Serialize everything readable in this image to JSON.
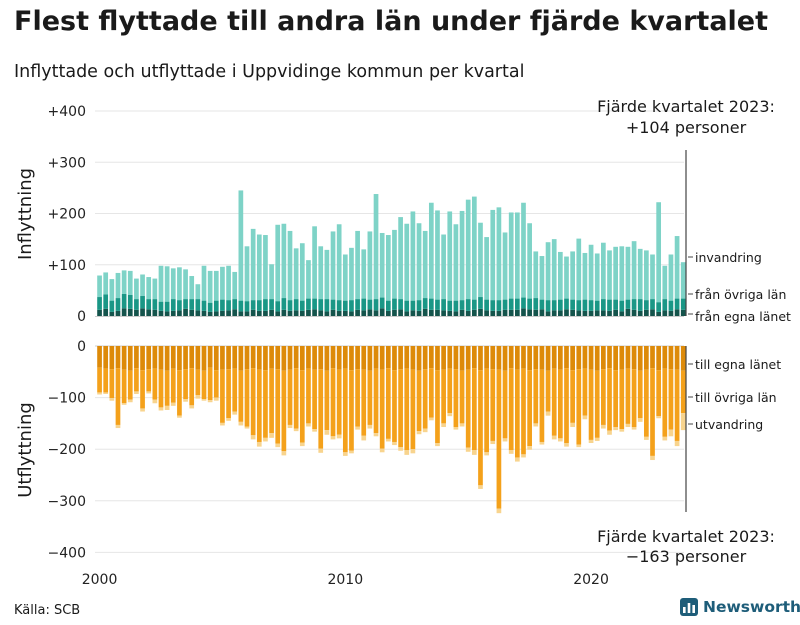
{
  "title": "Flest flyttade till andra län under fjärde kvartalet",
  "subtitle": "Inflyttade och utflyttade i Uppvidinge kommun per kvartal",
  "source": "Källa: SCB",
  "brand": "Newsworthy",
  "colors": {
    "in_own": "#14544c",
    "in_other": "#1a9786",
    "in_immigration": "#7ed3c7",
    "out_own": "#dd8a09",
    "out_other": "#f4a11b",
    "out_emigration": "#f8d48e",
    "grid": "#e6e6e6",
    "brand": "#1e5d79"
  },
  "chart_data": {
    "type": "bar",
    "stacked": true,
    "diverging": true,
    "x_unit": "quarter",
    "first_period": "2000-Q1",
    "xticks": [
      "2000",
      "2010",
      "2020"
    ],
    "top_panel": {
      "ylabel": "Inflyttning",
      "yticks": [
        "+400",
        "+300",
        "+200",
        "+100",
        "0"
      ],
      "ylim": [
        0,
        400
      ],
      "annotation": [
        "Fjärde kvartalet 2023:",
        "+104 personer"
      ],
      "series": [
        {
          "name": "från egna länet",
          "values": [
            12,
            14,
            8,
            10,
            15,
            14,
            12,
            15,
            13,
            12,
            10,
            9,
            10,
            11,
            14,
            12,
            11,
            10,
            8,
            9,
            10,
            11,
            13,
            9,
            9,
            12,
            10,
            10,
            12,
            9,
            12,
            10,
            11,
            10,
            12,
            13,
            11,
            9,
            12,
            10,
            10,
            9,
            12,
            11,
            13,
            11,
            15,
            10,
            12,
            13,
            9,
            11,
            10,
            14,
            12,
            12,
            11,
            10,
            9,
            12,
            10,
            12,
            14,
            11,
            10,
            10,
            12,
            12,
            12,
            15,
            13,
            12,
            13,
            9,
            11,
            11,
            13,
            12,
            11,
            10,
            10,
            11,
            11,
            10,
            12,
            9,
            14,
            12,
            10,
            12,
            13,
            8,
            11,
            10,
            13,
            12
          ]
        },
        {
          "name": "från övriga län",
          "values": [
            25,
            28,
            22,
            25,
            28,
            27,
            21,
            24,
            20,
            21,
            18,
            19,
            23,
            20,
            19,
            21,
            22,
            20,
            18,
            21,
            22,
            20,
            20,
            21,
            20,
            19,
            21,
            23,
            21,
            20,
            23,
            21,
            22,
            20,
            22,
            21,
            22,
            24,
            20,
            21,
            20,
            22,
            21,
            23,
            19,
            22,
            21,
            20,
            22,
            20,
            21,
            19,
            21,
            21,
            22,
            20,
            22,
            20,
            21,
            19,
            23,
            20,
            23,
            21,
            21,
            21,
            20,
            22,
            22,
            21,
            21,
            23,
            19,
            22,
            20,
            21,
            21,
            20,
            20,
            22,
            21,
            19,
            22,
            22,
            20,
            21,
            18,
            21,
            23,
            19,
            20,
            19,
            22,
            20,
            21,
            22
          ]
        },
        {
          "name": "invandring",
          "values": [
            42,
            43,
            42,
            49,
            46,
            47,
            40,
            42,
            43,
            40,
            70,
            69,
            60,
            64,
            58,
            45,
            29,
            68,
            62,
            58,
            64,
            67,
            53,
            215,
            107,
            139,
            128,
            125,
            68,
            149,
            145,
            135,
            99,
            112,
            75,
            141,
            103,
            96,
            133,
            148,
            90,
            102,
            133,
            96,
            133,
            205,
            126,
            128,
            134,
            160,
            150,
            174,
            150,
            131,
            187,
            174,
            126,
            174,
            149,
            174,
            194,
            201,
            145,
            122,
            176,
            181,
            131,
            168,
            168,
            185,
            147,
            91,
            85,
            113,
            119,
            93,
            82,
            94,
            120,
            91,
            108,
            92,
            110,
            96,
            103,
            106,
            103,
            113,
            98,
            97,
            87,
            195,
            65,
            90,
            122,
            71
          ]
        }
      ]
    },
    "bottom_panel": {
      "ylabel": "Utflyttning",
      "yticks": [
        "0",
        "−100",
        "−200",
        "−300",
        "−400"
      ],
      "ylim": [
        -400,
        0
      ],
      "annotation": [
        "Fjärde kvartalet 2023:",
        "−163 personer"
      ],
      "series": [
        {
          "name": "till egna länet",
          "values": [
            42,
            44,
            45,
            43,
            46,
            48,
            43,
            47,
            45,
            44,
            46,
            48,
            44,
            47,
            45,
            43,
            46,
            48,
            42,
            47,
            46,
            45,
            44,
            48,
            45,
            43,
            46,
            47,
            44,
            45,
            48,
            46,
            43,
            47,
            44,
            46,
            45,
            48,
            43,
            46,
            44,
            47,
            45,
            46,
            48,
            44,
            46,
            43,
            47,
            45,
            44,
            46,
            48,
            45,
            43,
            47,
            46,
            44,
            45,
            48,
            46,
            43,
            47,
            44,
            45,
            46,
            48,
            43,
            46,
            44,
            47,
            45,
            46,
            48,
            44,
            46,
            43,
            47,
            45,
            44,
            46,
            48,
            45,
            43,
            47,
            46,
            44,
            45,
            48,
            46,
            43,
            47,
            44,
            45,
            46,
            48
          ]
        },
        {
          "name": "till övriga län",
          "values": [
            48,
            46,
            56,
            110,
            65,
            56,
            45,
            74,
            43,
            60,
            73,
            68,
            66,
            88,
            58,
            72,
            49,
            55,
            63,
            53,
            103,
            95,
            83,
            99,
            111,
            130,
            140,
            131,
            125,
            144,
            156,
            107,
            117,
            140,
            106,
            115,
            154,
            115,
            132,
            126,
            162,
            156,
            111,
            128,
            105,
            125,
            153,
            137,
            139,
            151,
            158,
            154,
            117,
            115,
            96,
            141,
            104,
            86,
            112,
            102,
            151,
            159,
            223,
            162,
            139,
            269,
            131,
            159,
            170,
            166,
            147,
            105,
            140,
            79,
            130,
            133,
            145,
            102,
            146,
            91,
            136,
            130,
            108,
            121,
            110,
            115,
            107,
            112,
            92,
            130,
            170,
            89,
            132,
            117,
            138,
            82
          ]
        },
        {
          "name": "utvandring",
          "values": [
            4,
            3,
            5,
            6,
            3,
            5,
            5,
            6,
            4,
            7,
            6,
            8,
            6,
            4,
            5,
            6,
            7,
            3,
            4,
            6,
            5,
            5,
            6,
            7,
            4,
            8,
            9,
            7,
            9,
            7,
            8,
            6,
            5,
            7,
            6,
            5,
            8,
            9,
            6,
            7,
            7,
            5,
            6,
            9,
            7,
            6,
            7,
            5,
            6,
            7,
            9,
            8,
            6,
            7,
            5,
            6,
            7,
            6,
            5,
            6,
            8,
            9,
            7,
            6,
            6,
            9,
            6,
            7,
            8,
            6,
            7,
            6,
            5,
            8,
            7,
            6,
            7,
            8,
            5,
            7,
            6,
            6,
            7,
            8,
            6,
            5,
            6,
            5,
            7,
            6,
            8,
            4,
            7,
            13,
            10,
            33
          ]
        }
      ]
    }
  }
}
